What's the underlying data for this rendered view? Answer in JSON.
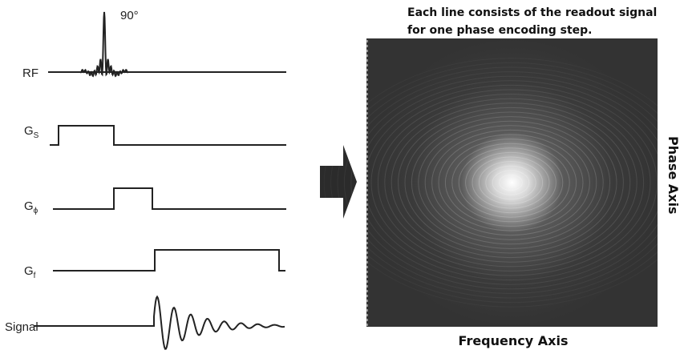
{
  "pulse_sequence": {
    "rf": {
      "label": "RF",
      "flip_angle": "90°"
    },
    "gradients": [
      {
        "label": "G",
        "subscript": "S"
      },
      {
        "label": "G",
        "subscript": "ϕ"
      },
      {
        "label": "G",
        "subscript": "f"
      }
    ],
    "signal": {
      "label": "Signal"
    }
  },
  "kspace": {
    "caption": [
      "Each line consists of the readout signal",
      "for one phase encoding step."
    ],
    "x_axis_label": "Frequency Axis",
    "y_axis_label": "Phase Axis"
  }
}
